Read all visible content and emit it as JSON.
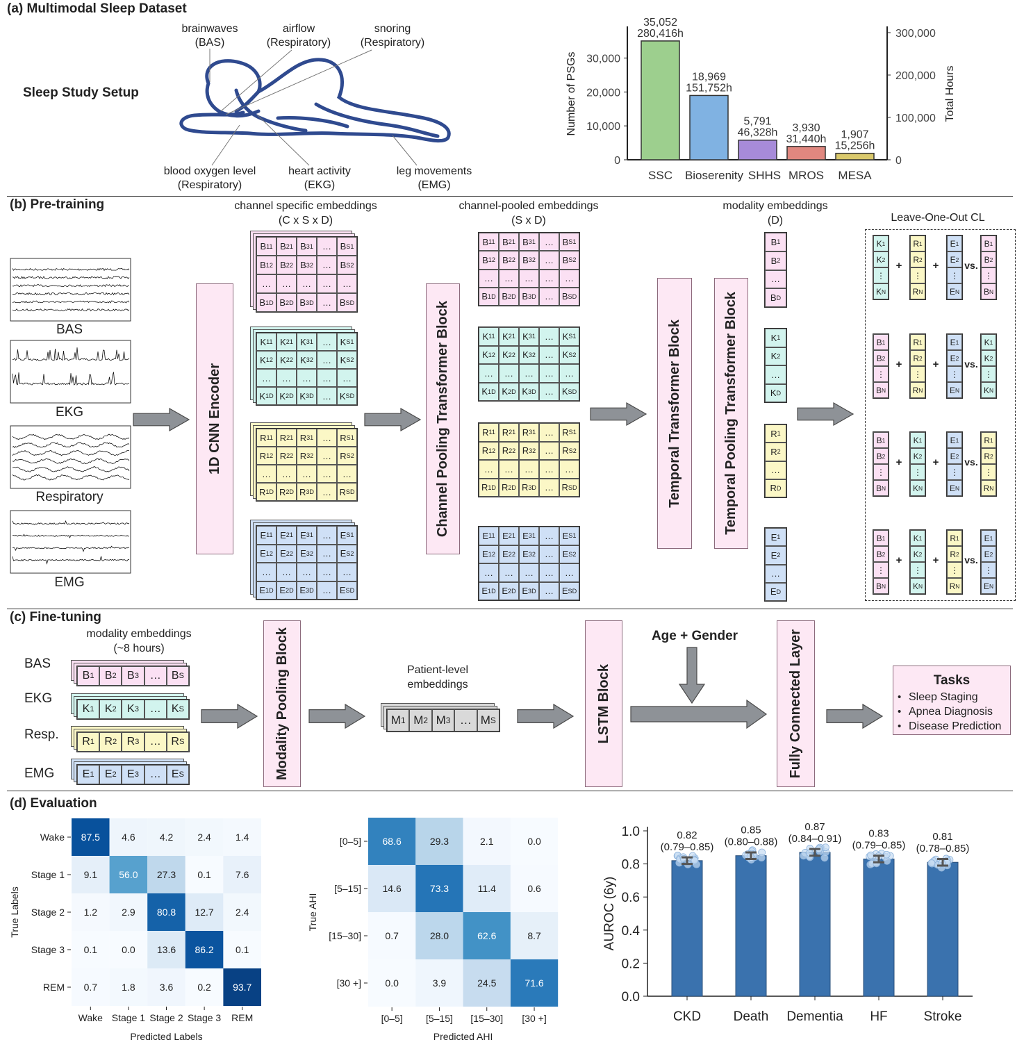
{
  "a": {
    "title": "(a) Multimodal Sleep Dataset",
    "setup_label": "Sleep Study Setup",
    "sensor_labels": [
      [
        "brainwaves",
        "(BAS)"
      ],
      [
        "airflow",
        "(Respiratory)"
      ],
      [
        "snoring",
        "(Respiratory)"
      ],
      [
        "blood oxygen level",
        "(Respiratory)"
      ],
      [
        "heart activity",
        "(EKG)"
      ],
      [
        "leg movements",
        "(EMG)"
      ]
    ],
    "body_color": "#2f4a8f"
  },
  "b": {
    "title": "(b) Pre-training",
    "signals": [
      "BAS",
      "EKG",
      "Respiratory",
      "EMG"
    ],
    "encoder": "1D CNN Encoder",
    "channel_specific_title": "channel specific embeddings",
    "channel_specific_dims": "(C x S x D)",
    "channel_pooled_title": "channel-pooled embeddings",
    "channel_pooled_dims": "(S x D)",
    "modality_title": "modality embeddings",
    "modality_dims": "(D)",
    "channel_pooling_block": "Channel Pooling Transformer Block",
    "temporal_block": "Temporal Transformer Block",
    "temporal_pooling_block": "Temporal Pooling Transformer Block",
    "colors": {
      "B": "#fbe0f3",
      "K": "#d2f4ee",
      "R": "#fbf7c6",
      "E": "#cfe0f6",
      "M": "#d9d9d9"
    },
    "matrices": [
      [
        [
          "B11",
          "B21",
          "B31",
          "…",
          "BS1"
        ],
        [
          "B12",
          "B22",
          "B32",
          "…",
          "BS2"
        ],
        [
          "…",
          "…",
          "…",
          "…",
          "…"
        ],
        [
          "B1D",
          "B2D",
          "B3D",
          "…",
          "BSD"
        ]
      ],
      [
        [
          "K11",
          "K21",
          "K31",
          "…",
          "KS1"
        ],
        [
          "K12",
          "K22",
          "K32",
          "…",
          "KS2"
        ],
        [
          "…",
          "…",
          "…",
          "…",
          "…"
        ],
        [
          "K1D",
          "K2D",
          "K3D",
          "…",
          "KSD"
        ]
      ],
      [
        [
          "R11",
          "R21",
          "R31",
          "…",
          "RS1"
        ],
        [
          "R12",
          "R22",
          "R32",
          "…",
          "RS2"
        ],
        [
          "…",
          "…",
          "…",
          "…",
          "…"
        ],
        [
          "R1D",
          "R2D",
          "R3D",
          "…",
          "RSD"
        ]
      ],
      [
        [
          "E11",
          "E21",
          "E31",
          "…",
          "ES1"
        ],
        [
          "E12",
          "E22",
          "E32",
          "…",
          "ES2"
        ],
        [
          "…",
          "…",
          "…",
          "…",
          "…"
        ],
        [
          "E1D",
          "E2D",
          "E3D",
          "…",
          "ESD"
        ]
      ]
    ],
    "columns": [
      [
        "B1",
        "B2",
        "…",
        "BD"
      ],
      [
        "K1",
        "K2",
        "…",
        "KD"
      ],
      [
        "R1",
        "R2",
        "…",
        "RD"
      ],
      [
        "E1",
        "E2",
        "…",
        "ED"
      ]
    ],
    "loo": {
      "title": "Leave-One-Out CL",
      "plus": "+",
      "vs": "vs.",
      "rows": [
        [
          [
            "K1",
            "K2",
            "⋮",
            "KN"
          ],
          [
            "R1",
            "R2",
            "⋮",
            "RN"
          ],
          [
            "E1",
            "E2",
            "⋮",
            "EN"
          ],
          [
            "B1",
            "B2",
            "⋮",
            "BN"
          ]
        ],
        [
          [
            "B1",
            "B2",
            "⋮",
            "BN"
          ],
          [
            "R1",
            "R2",
            "⋮",
            "RN"
          ],
          [
            "E1",
            "E2",
            "⋮",
            "EN"
          ],
          [
            "K1",
            "K2",
            "⋮",
            "KN"
          ]
        ],
        [
          [
            "B1",
            "B2",
            "⋮",
            "BN"
          ],
          [
            "K1",
            "K2",
            "⋮",
            "KN"
          ],
          [
            "E1",
            "E2",
            "⋮",
            "EN"
          ],
          [
            "R1",
            "R2",
            "⋮",
            "RN"
          ]
        ],
        [
          [
            "B1",
            "B2",
            "⋮",
            "BN"
          ],
          [
            "K1",
            "K2",
            "⋮",
            "KN"
          ],
          [
            "R1",
            "R2",
            "⋮",
            "RN"
          ],
          [
            "E1",
            "E2",
            "⋮",
            "EN"
          ]
        ]
      ]
    }
  },
  "c": {
    "title": "(c) Fine-tuning",
    "emb_title": "modality embeddings",
    "emb_dims": "(~8 hours)",
    "rows": [
      {
        "label": "BAS",
        "cells": [
          "B1",
          "B2",
          "B3",
          "…",
          "BS"
        ]
      },
      {
        "label": "EKG",
        "cells": [
          "K1",
          "K2",
          "K3",
          "…",
          "KS"
        ]
      },
      {
        "label": "Resp.",
        "cells": [
          "R1",
          "R2",
          "R3",
          "…",
          "RS"
        ]
      },
      {
        "label": "EMG",
        "cells": [
          "E1",
          "E2",
          "E3",
          "…",
          "ES"
        ]
      }
    ],
    "modality_pooling": "Modality Pooling Block",
    "patient_title": [
      "Patient-level",
      "embeddings"
    ],
    "patient_cells": [
      "M1",
      "M2",
      "M3",
      "…",
      "MS"
    ],
    "lstm": "LSTM Block",
    "age_gender": "Age + Gender",
    "fc": "Fully Connected Layer",
    "tasks": {
      "title": "Tasks",
      "bullet": "•",
      "items": [
        "Sleep Staging",
        "Apnea Diagnosis",
        "Disease Prediction"
      ]
    }
  },
  "d": {
    "title": "(d) Evaluation"
  },
  "chart_data": [
    {
      "type": "bar",
      "categories": [
        "SSC",
        "Bioserenity",
        "SHHS",
        "MROS",
        "MESA"
      ],
      "series": [
        {
          "values": [
            35052,
            18969,
            5791,
            3930,
            1907
          ]
        }
      ],
      "total_hours": [
        280416,
        151752,
        46328,
        31440,
        15256
      ],
      "data_labels": [
        [
          "35,052",
          "280,416h"
        ],
        [
          "18,969",
          "151,752h"
        ],
        [
          "5,791",
          "46,328h"
        ],
        [
          "3,930",
          "31,440h"
        ],
        [
          "1,907",
          "15,256h"
        ]
      ],
      "colors": [
        "#9dcf8e",
        "#80b2e2",
        "#a78bd9",
        "#e0877f",
        "#dac96c"
      ],
      "ylabel": "Number of PSGs",
      "y2label": "Total Hours",
      "ylim": [
        0,
        37500
      ],
      "y2lim": [
        0,
        300000
      ],
      "yticks": [
        0,
        10000,
        20000,
        30000
      ],
      "ytick_labels": [
        "0",
        "10,000",
        "20,000",
        "30,000"
      ],
      "y2ticks": [
        0,
        100000,
        200000,
        300000
      ],
      "y2tick_labels": [
        "0",
        "100,000",
        "200,000",
        "300,000"
      ],
      "grid": false
    },
    {
      "type": "heatmap",
      "xlabel": "Predicted Labels",
      "ylabel": "True Labels",
      "categories": [
        "Wake",
        "Stage 1",
        "Stage 2",
        "Stage 3",
        "REM"
      ],
      "values": [
        [
          87.5,
          4.6,
          4.2,
          2.4,
          1.4
        ],
        [
          9.1,
          56.0,
          27.3,
          0.1,
          7.6
        ],
        [
          1.2,
          2.9,
          80.8,
          12.7,
          2.4
        ],
        [
          0.1,
          0.0,
          13.6,
          86.2,
          0.1
        ],
        [
          0.7,
          1.8,
          3.6,
          0.2,
          93.7
        ]
      ],
      "colormap": "Blues"
    },
    {
      "type": "heatmap",
      "xlabel": "Predicted AHI",
      "ylabel": "True AHI",
      "categories": [
        "[0–5]",
        "[5–15]",
        "[15–30]",
        "[30 +]"
      ],
      "values": [
        [
          68.6,
          29.3,
          2.1,
          0.0
        ],
        [
          14.6,
          73.3,
          11.4,
          0.6
        ],
        [
          0.7,
          28.0,
          62.6,
          8.7
        ],
        [
          0.0,
          3.9,
          24.5,
          71.6
        ]
      ],
      "colormap": "Blues"
    },
    {
      "type": "bar",
      "categories": [
        "CKD",
        "Death",
        "Dementia",
        "HF",
        "Stroke"
      ],
      "values": [
        0.82,
        0.85,
        0.87,
        0.83,
        0.81
      ],
      "ci": [
        [
          0.79,
          0.85
        ],
        [
          0.8,
          0.88
        ],
        [
          0.84,
          0.91
        ],
        [
          0.79,
          0.85
        ],
        [
          0.78,
          0.85
        ]
      ],
      "value_labels": [
        "0.82",
        "0.85",
        "0.87",
        "0.83",
        "0.81"
      ],
      "ci_labels": [
        "(0.79–0.85)",
        "(0.80–0.88)",
        "(0.84–0.91)",
        "(0.79–0.85)",
        "(0.78–0.85)"
      ],
      "ylabel": "AUROC (6y)",
      "ylim": [
        0,
        1.0
      ],
      "yticks": [
        0.0,
        0.2,
        0.4,
        0.6,
        0.8,
        1.0
      ],
      "ytick_labels": [
        "0.0",
        "0.2",
        "0.4",
        "0.6",
        "0.8",
        "1.0"
      ],
      "color": "#3a72ae",
      "grid": false
    }
  ]
}
